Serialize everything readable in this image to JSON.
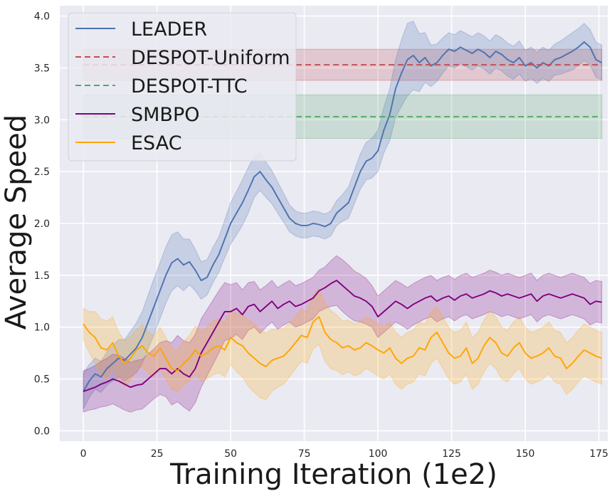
{
  "chart_data": {
    "type": "line",
    "title": "",
    "xlabel": "Training Iteration (1e2)",
    "ylabel": "Average Speed",
    "xlim": [
      -8,
      178
    ],
    "ylim": [
      -0.1,
      4.1
    ],
    "xticks": [
      0,
      25,
      50,
      75,
      100,
      125,
      150,
      175
    ],
    "yticks": [
      0.0,
      0.5,
      1.0,
      1.5,
      2.0,
      2.5,
      3.0,
      3.5,
      4.0
    ],
    "xtick_labels": [
      "0",
      "25",
      "50",
      "75",
      "100",
      "125",
      "150",
      "175"
    ],
    "ytick_labels": [
      "0.0",
      "0.5",
      "1.0",
      "1.5",
      "2.0",
      "2.5",
      "3.0",
      "3.5",
      "4.0"
    ],
    "grid": true,
    "legend_position": "top-left",
    "series": [
      {
        "name": "LEADER",
        "style": "solid",
        "color": "#4c72b0",
        "x": [
          0,
          2,
          4,
          6,
          8,
          10,
          12,
          14,
          16,
          18,
          20,
          22,
          24,
          26,
          28,
          30,
          32,
          34,
          36,
          38,
          40,
          42,
          44,
          46,
          48,
          50,
          52,
          54,
          56,
          58,
          60,
          62,
          64,
          66,
          68,
          70,
          72,
          74,
          76,
          78,
          80,
          82,
          84,
          86,
          88,
          90,
          92,
          94,
          96,
          98,
          100,
          102,
          104,
          106,
          108,
          110,
          112,
          114,
          116,
          118,
          120,
          122,
          124,
          126,
          128,
          130,
          132,
          134,
          136,
          138,
          140,
          142,
          144,
          146,
          148,
          150,
          152,
          154,
          156,
          158,
          160,
          162,
          164,
          166,
          168,
          170,
          172,
          174,
          176
        ],
        "values": [
          0.38,
          0.48,
          0.55,
          0.52,
          0.6,
          0.65,
          0.7,
          0.68,
          0.74,
          0.8,
          0.9,
          1.05,
          1.2,
          1.35,
          1.5,
          1.62,
          1.66,
          1.6,
          1.63,
          1.55,
          1.45,
          1.48,
          1.6,
          1.7,
          1.85,
          2.0,
          2.1,
          2.2,
          2.32,
          2.45,
          2.5,
          2.42,
          2.35,
          2.25,
          2.15,
          2.05,
          2.0,
          1.98,
          1.98,
          2.0,
          1.99,
          1.97,
          2.0,
          2.1,
          2.15,
          2.2,
          2.35,
          2.5,
          2.6,
          2.63,
          2.7,
          2.9,
          3.05,
          3.3,
          3.45,
          3.58,
          3.62,
          3.55,
          3.6,
          3.52,
          3.55,
          3.62,
          3.68,
          3.66,
          3.7,
          3.67,
          3.64,
          3.68,
          3.65,
          3.6,
          3.66,
          3.63,
          3.58,
          3.55,
          3.6,
          3.52,
          3.55,
          3.5,
          3.55,
          3.52,
          3.58,
          3.6,
          3.63,
          3.66,
          3.7,
          3.75,
          3.7,
          3.58,
          3.55
        ],
        "band_halfwidth": [
          0.17,
          0.16,
          0.15,
          0.15,
          0.16,
          0.17,
          0.18,
          0.2,
          0.22,
          0.24,
          0.25,
          0.26,
          0.27,
          0.27,
          0.27,
          0.27,
          0.26,
          0.25,
          0.22,
          0.2,
          0.18,
          0.17,
          0.17,
          0.17,
          0.18,
          0.2,
          0.21,
          0.22,
          0.22,
          0.2,
          0.18,
          0.17,
          0.16,
          0.15,
          0.14,
          0.13,
          0.12,
          0.12,
          0.12,
          0.12,
          0.12,
          0.12,
          0.12,
          0.12,
          0.13,
          0.15,
          0.16,
          0.17,
          0.18,
          0.19,
          0.2,
          0.22,
          0.25,
          0.28,
          0.32,
          0.35,
          0.33,
          0.28,
          0.24,
          0.2,
          0.18,
          0.17,
          0.16,
          0.16,
          0.16,
          0.16,
          0.16,
          0.16,
          0.16,
          0.16,
          0.16,
          0.16,
          0.16,
          0.16,
          0.16,
          0.15,
          0.15,
          0.15,
          0.15,
          0.15,
          0.15,
          0.16,
          0.17,
          0.18,
          0.18,
          0.18,
          0.17,
          0.17,
          0.17
        ]
      },
      {
        "name": "DESPOT-Uniform",
        "style": "dashed",
        "color": "#c44e52",
        "x": [
          0,
          176
        ],
        "values": [
          3.53,
          3.53
        ],
        "band": [
          3.38,
          3.68
        ]
      },
      {
        "name": "DESPOT-TTC",
        "style": "dashed",
        "color": "#55a868",
        "x": [
          0,
          176
        ],
        "values": [
          3.03,
          3.03
        ],
        "band": [
          2.82,
          3.24
        ]
      },
      {
        "name": "SMBPO",
        "style": "solid",
        "color": "#800080",
        "x": [
          0,
          2,
          4,
          6,
          8,
          10,
          12,
          14,
          16,
          18,
          20,
          22,
          24,
          26,
          28,
          30,
          32,
          34,
          36,
          38,
          40,
          42,
          44,
          46,
          48,
          50,
          52,
          54,
          56,
          58,
          60,
          62,
          64,
          66,
          68,
          70,
          72,
          74,
          76,
          78,
          80,
          82,
          84,
          86,
          88,
          90,
          92,
          94,
          96,
          98,
          100,
          102,
          104,
          106,
          108,
          110,
          112,
          114,
          116,
          118,
          120,
          122,
          124,
          126,
          128,
          130,
          132,
          134,
          136,
          138,
          140,
          142,
          144,
          146,
          148,
          150,
          152,
          154,
          156,
          158,
          160,
          162,
          164,
          166,
          168,
          170,
          172,
          174,
          176
        ],
        "values": [
          0.38,
          0.4,
          0.42,
          0.45,
          0.47,
          0.5,
          0.48,
          0.45,
          0.42,
          0.44,
          0.45,
          0.5,
          0.55,
          0.6,
          0.6,
          0.55,
          0.6,
          0.55,
          0.52,
          0.6,
          0.75,
          0.85,
          0.95,
          1.05,
          1.15,
          1.15,
          1.18,
          1.12,
          1.2,
          1.22,
          1.15,
          1.2,
          1.25,
          1.18,
          1.22,
          1.25,
          1.2,
          1.22,
          1.25,
          1.28,
          1.35,
          1.38,
          1.42,
          1.45,
          1.4,
          1.35,
          1.3,
          1.28,
          1.25,
          1.2,
          1.1,
          1.15,
          1.2,
          1.25,
          1.22,
          1.18,
          1.22,
          1.25,
          1.28,
          1.3,
          1.25,
          1.28,
          1.3,
          1.26,
          1.3,
          1.32,
          1.28,
          1.3,
          1.32,
          1.35,
          1.33,
          1.3,
          1.32,
          1.3,
          1.28,
          1.3,
          1.32,
          1.25,
          1.3,
          1.32,
          1.3,
          1.28,
          1.3,
          1.32,
          1.3,
          1.28,
          1.22,
          1.25,
          1.24
        ],
        "band_halfwidth": [
          0.2,
          0.2,
          0.21,
          0.22,
          0.23,
          0.24,
          0.25,
          0.25,
          0.24,
          0.24,
          0.24,
          0.24,
          0.24,
          0.25,
          0.27,
          0.3,
          0.32,
          0.32,
          0.33,
          0.33,
          0.33,
          0.32,
          0.31,
          0.3,
          0.28,
          0.26,
          0.25,
          0.24,
          0.23,
          0.22,
          0.21,
          0.2,
          0.2,
          0.2,
          0.2,
          0.2,
          0.2,
          0.2,
          0.2,
          0.2,
          0.2,
          0.2,
          0.22,
          0.24,
          0.25,
          0.25,
          0.24,
          0.23,
          0.22,
          0.2,
          0.2,
          0.2,
          0.2,
          0.2,
          0.2,
          0.2,
          0.2,
          0.2,
          0.2,
          0.2,
          0.2,
          0.2,
          0.2,
          0.2,
          0.2,
          0.2,
          0.2,
          0.2,
          0.2,
          0.2,
          0.2,
          0.2,
          0.2,
          0.2,
          0.2,
          0.2,
          0.2,
          0.2,
          0.2,
          0.2,
          0.2,
          0.2,
          0.2,
          0.2,
          0.2,
          0.2,
          0.2,
          0.2,
          0.2
        ]
      },
      {
        "name": "ESAC",
        "style": "solid",
        "color": "#ffa500",
        "x": [
          0,
          2,
          4,
          6,
          8,
          10,
          12,
          14,
          16,
          18,
          20,
          22,
          24,
          26,
          28,
          30,
          32,
          34,
          36,
          38,
          40,
          42,
          44,
          46,
          48,
          50,
          52,
          54,
          56,
          58,
          60,
          62,
          64,
          66,
          68,
          70,
          72,
          74,
          76,
          78,
          80,
          82,
          84,
          86,
          88,
          90,
          92,
          94,
          96,
          98,
          100,
          102,
          104,
          106,
          108,
          110,
          112,
          114,
          116,
          118,
          120,
          122,
          124,
          126,
          128,
          130,
          132,
          134,
          136,
          138,
          140,
          142,
          144,
          146,
          148,
          150,
          152,
          154,
          156,
          158,
          160,
          162,
          164,
          166,
          168,
          170,
          172,
          174,
          176
        ],
        "values": [
          1.03,
          0.95,
          0.9,
          0.8,
          0.78,
          0.85,
          0.72,
          0.65,
          0.7,
          0.78,
          0.82,
          0.75,
          0.72,
          0.8,
          0.7,
          0.6,
          0.58,
          0.65,
          0.7,
          0.78,
          0.72,
          0.75,
          0.8,
          0.82,
          0.78,
          0.9,
          0.85,
          0.82,
          0.75,
          0.7,
          0.65,
          0.62,
          0.68,
          0.7,
          0.72,
          0.78,
          0.85,
          0.92,
          0.9,
          1.05,
          1.1,
          0.95,
          0.88,
          0.85,
          0.8,
          0.82,
          0.78,
          0.8,
          0.85,
          0.82,
          0.78,
          0.75,
          0.8,
          0.7,
          0.65,
          0.7,
          0.72,
          0.8,
          0.78,
          0.9,
          0.95,
          0.85,
          0.75,
          0.7,
          0.72,
          0.8,
          0.65,
          0.7,
          0.82,
          0.9,
          0.85,
          0.75,
          0.72,
          0.8,
          0.85,
          0.75,
          0.7,
          0.72,
          0.75,
          0.8,
          0.72,
          0.7,
          0.6,
          0.65,
          0.72,
          0.78,
          0.75,
          0.72,
          0.7
        ],
        "band_halfwidth": [
          0.15,
          0.2,
          0.25,
          0.28,
          0.28,
          0.25,
          0.23,
          0.22,
          0.21,
          0.2,
          0.2,
          0.2,
          0.2,
          0.2,
          0.2,
          0.2,
          0.2,
          0.21,
          0.22,
          0.23,
          0.24,
          0.25,
          0.26,
          0.26,
          0.26,
          0.26,
          0.28,
          0.3,
          0.32,
          0.33,
          0.33,
          0.32,
          0.3,
          0.28,
          0.27,
          0.26,
          0.25,
          0.25,
          0.25,
          0.26,
          0.27,
          0.28,
          0.28,
          0.27,
          0.26,
          0.25,
          0.25,
          0.25,
          0.25,
          0.25,
          0.25,
          0.25,
          0.25,
          0.25,
          0.25,
          0.25,
          0.25,
          0.25,
          0.25,
          0.25,
          0.25,
          0.25,
          0.25,
          0.25,
          0.25,
          0.25,
          0.25,
          0.25,
          0.25,
          0.25,
          0.25,
          0.25,
          0.25,
          0.25,
          0.25,
          0.25,
          0.25,
          0.25,
          0.25,
          0.25,
          0.25,
          0.25,
          0.25,
          0.25,
          0.25,
          0.25,
          0.25,
          0.25,
          0.25
        ]
      }
    ]
  }
}
